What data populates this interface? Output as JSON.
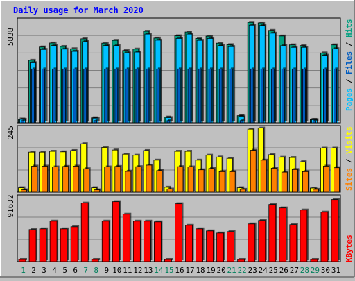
{
  "chart_data": [
    {
      "type": "bar",
      "title": "Daily usage for March 2020",
      "ymax_label": "5838",
      "legend": [
        "Pages",
        "Files",
        "Hits"
      ],
      "categories": [
        "1",
        "2",
        "3",
        "4",
        "5",
        "6",
        "7",
        "8",
        "9",
        "10",
        "11",
        "12",
        "13",
        "14",
        "15",
        "16",
        "17",
        "18",
        "19",
        "20",
        "21",
        "22",
        "23",
        "24",
        "25",
        "26",
        "27",
        "28",
        "29",
        "30",
        "31"
      ],
      "weekend_days": [
        1,
        7,
        8,
        14,
        15,
        21,
        22,
        28,
        29
      ],
      "series": [
        {
          "name": "Pages",
          "values": [
            125,
            3085,
            3085,
            3085,
            3085,
            3085,
            3085,
            125,
            3085,
            3085,
            3085,
            3085,
            3085,
            3085,
            125,
            3085,
            3085,
            3085,
            3085,
            3085,
            3085,
            125,
            3085,
            3085,
            3085,
            3085,
            3085,
            3085,
            125,
            3085,
            3085
          ]
        },
        {
          "name": "Files",
          "values": [
            200,
            3440,
            4200,
            4420,
            4220,
            4090,
            4650,
            270,
            4420,
            4420,
            4000,
            4050,
            5080,
            4730,
            300,
            4830,
            5080,
            4720,
            4830,
            4420,
            4360,
            380,
            5590,
            5570,
            5130,
            4410,
            4320,
            4320,
            180,
            3870,
            4240
          ]
        },
        {
          "name": "Hits",
          "values": [
            220,
            3580,
            4340,
            4570,
            4370,
            4240,
            4810,
            290,
            4560,
            4720,
            4140,
            4220,
            5240,
            4850,
            330,
            4980,
            5200,
            4830,
            4960,
            4560,
            4470,
            410,
            5750,
            5720,
            5290,
            4970,
            4460,
            4420,
            200,
            4000,
            4460
          ]
        }
      ],
      "colors": {
        "Pages": "#005cc0",
        "Files": "#00c0ff",
        "Hits": "#00a080"
      }
    },
    {
      "type": "bar",
      "ymax_label": "245",
      "legend": [
        "Sites",
        "Visits"
      ],
      "categories": [
        "1",
        "2",
        "3",
        "4",
        "5",
        "6",
        "7",
        "8",
        "9",
        "10",
        "11",
        "12",
        "13",
        "14",
        "15",
        "16",
        "17",
        "18",
        "19",
        "20",
        "21",
        "22",
        "23",
        "24",
        "25",
        "26",
        "27",
        "28",
        "29",
        "30",
        "31"
      ],
      "series": [
        {
          "name": "Sites",
          "values": [
            9,
            100,
            100,
            97,
            99,
            100,
            90,
            9,
            97,
            99,
            80,
            98,
            104,
            83,
            12,
            98,
            97,
            86,
            91,
            79,
            79,
            11,
            161,
            123,
            92,
            77,
            87,
            79,
            11,
            100,
            94
          ]
        },
        {
          "name": "Visits",
          "values": [
            17,
            154,
            154,
            157,
            155,
            160,
            186,
            17,
            172,
            162,
            146,
            142,
            160,
            123,
            19,
            157,
            157,
            123,
            142,
            135,
            130,
            17,
            242,
            246,
            144,
            134,
            133,
            117,
            16,
            169,
            169
          ]
        }
      ],
      "colors": {
        "Sites": "#ff8000",
        "Visits": "#ffff00"
      }
    },
    {
      "type": "bar",
      "ymax_label": "91632",
      "legend": [
        "KBytes"
      ],
      "categories": [
        "1",
        "2",
        "3",
        "4",
        "5",
        "6",
        "7",
        "8",
        "9",
        "10",
        "11",
        "12",
        "13",
        "14",
        "15",
        "16",
        "17",
        "18",
        "19",
        "20",
        "21",
        "22",
        "23",
        "24",
        "25",
        "26",
        "27",
        "28",
        "29",
        "30",
        "31"
      ],
      "series": [
        {
          "name": "KBytes",
          "values": [
            3000,
            46000,
            47000,
            58000,
            47000,
            50000,
            84000,
            3000,
            58000,
            86000,
            68000,
            58000,
            58000,
            57000,
            3000,
            83000,
            52000,
            47000,
            44000,
            41000,
            43000,
            3000,
            54000,
            59000,
            82000,
            77000,
            53000,
            74000,
            3000,
            71000,
            89000
          ]
        }
      ],
      "colors": {
        "KBytes": "#ff0000"
      }
    }
  ]
}
